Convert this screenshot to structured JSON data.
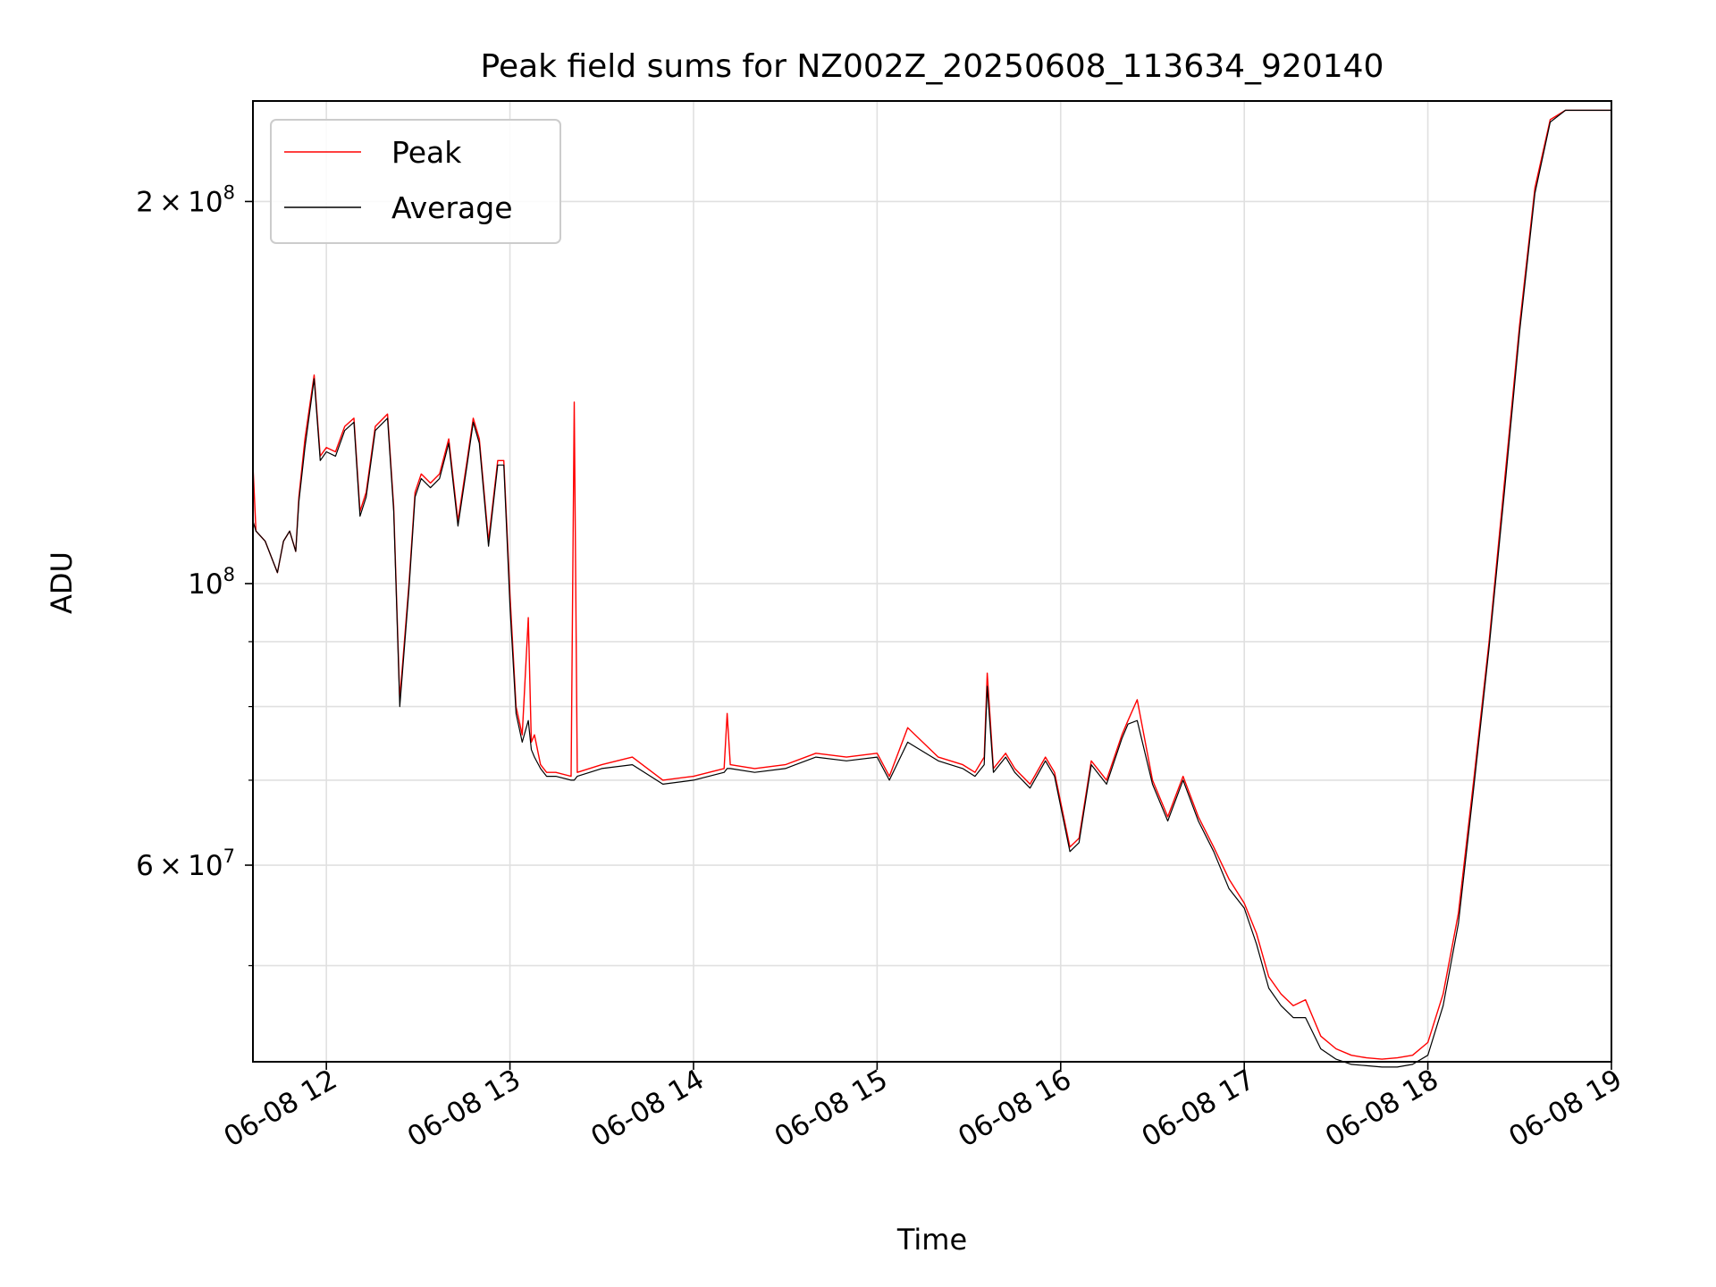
{
  "chart_data": {
    "type": "line",
    "title": "Peak field sums for NZ002Z_20250608_113634_920140",
    "xlabel": "Time",
    "ylabel": "ADU",
    "y_scale": "log",
    "x_range": [
      "2025-06-08 11:36",
      "2025-06-08 19:00"
    ],
    "ylim": [
      42000000,
      240000000
    ],
    "grid": true,
    "legend_placement": "top-left",
    "x_ticks": [
      {
        "value": "2025-06-08 12:00",
        "label": "06-08 12"
      },
      {
        "value": "2025-06-08 13:00",
        "label": "06-08 13"
      },
      {
        "value": "2025-06-08 14:00",
        "label": "06-08 14"
      },
      {
        "value": "2025-06-08 15:00",
        "label": "06-08 15"
      },
      {
        "value": "2025-06-08 16:00",
        "label": "06-08 16"
      },
      {
        "value": "2025-06-08 17:00",
        "label": "06-08 17"
      },
      {
        "value": "2025-06-08 18:00",
        "label": "06-08 18"
      },
      {
        "value": "2025-06-08 19:00",
        "label": "06-08 19"
      }
    ],
    "y_major_ticks": [
      {
        "value": 200000000,
        "base": "2",
        "exp": "8",
        "times": true
      },
      {
        "value": 100000000,
        "base": "10",
        "exp": "8",
        "times": false
      },
      {
        "value": 60000000,
        "base": "6",
        "exp": "7",
        "times": true
      }
    ],
    "y_minor_ticks": [
      50000000,
      70000000,
      80000000,
      90000000
    ],
    "series": [
      {
        "name": "Peak",
        "color": "#ff0000",
        "x": [
          "2025-06-08 11:36",
          "2025-06-08 11:37",
          "2025-06-08 11:40",
          "2025-06-08 11:44",
          "2025-06-08 11:46",
          "2025-06-08 11:48",
          "2025-06-08 11:50",
          "2025-06-08 11:51",
          "2025-06-08 11:53",
          "2025-06-08 11:56",
          "2025-06-08 11:58",
          "2025-06-08 12:00",
          "2025-06-08 12:03",
          "2025-06-08 12:06",
          "2025-06-08 12:09",
          "2025-06-08 12:11",
          "2025-06-08 12:13",
          "2025-06-08 12:16",
          "2025-06-08 12:20",
          "2025-06-08 12:22",
          "2025-06-08 12:24",
          "2025-06-08 12:27",
          "2025-06-08 12:29",
          "2025-06-08 12:31",
          "2025-06-08 12:34",
          "2025-06-08 12:37",
          "2025-06-08 12:40",
          "2025-06-08 12:43",
          "2025-06-08 12:46",
          "2025-06-08 12:48",
          "2025-06-08 12:50",
          "2025-06-08 12:53",
          "2025-06-08 12:56",
          "2025-06-08 12:58",
          "2025-06-08 13:00",
          "2025-06-08 13:02",
          "2025-06-08 13:04",
          "2025-06-08 13:06",
          "2025-06-08 13:07",
          "2025-06-08 13:08",
          "2025-06-08 13:10",
          "2025-06-08 13:12",
          "2025-06-08 13:15",
          "2025-06-08 13:20",
          "2025-06-08 13:21",
          "2025-06-08 13:22",
          "2025-06-08 13:30",
          "2025-06-08 13:40",
          "2025-06-08 13:50",
          "2025-06-08 14:00",
          "2025-06-08 14:10",
          "2025-06-08 14:11",
          "2025-06-08 14:12",
          "2025-06-08 14:20",
          "2025-06-08 14:30",
          "2025-06-08 14:40",
          "2025-06-08 14:50",
          "2025-06-08 15:00",
          "2025-06-08 15:04",
          "2025-06-08 15:10",
          "2025-06-08 15:20",
          "2025-06-08 15:28",
          "2025-06-08 15:32",
          "2025-06-08 15:35",
          "2025-06-08 15:36",
          "2025-06-08 15:38",
          "2025-06-08 15:42",
          "2025-06-08 15:45",
          "2025-06-08 15:50",
          "2025-06-08 15:55",
          "2025-06-08 15:58",
          "2025-06-08 16:03",
          "2025-06-08 16:06",
          "2025-06-08 16:10",
          "2025-06-08 16:15",
          "2025-06-08 16:20",
          "2025-06-08 16:22",
          "2025-06-08 16:25",
          "2025-06-08 16:30",
          "2025-06-08 16:35",
          "2025-06-08 16:40",
          "2025-06-08 16:45",
          "2025-06-08 16:50",
          "2025-06-08 16:55",
          "2025-06-08 17:00",
          "2025-06-08 17:04",
          "2025-06-08 17:08",
          "2025-06-08 17:12",
          "2025-06-08 17:16",
          "2025-06-08 17:20",
          "2025-06-08 17:25",
          "2025-06-08 17:30",
          "2025-06-08 17:35",
          "2025-06-08 17:40",
          "2025-06-08 17:45",
          "2025-06-08 17:50",
          "2025-06-08 17:55",
          "2025-06-08 18:00",
          "2025-06-08 18:05",
          "2025-06-08 18:10",
          "2025-06-08 18:15",
          "2025-06-08 18:20",
          "2025-06-08 18:25",
          "2025-06-08 18:30",
          "2025-06-08 18:35",
          "2025-06-08 18:40",
          "2025-06-08 18:45",
          "2025-06-08 18:50",
          "2025-06-08 18:55",
          "2025-06-08 19:00"
        ],
        "values": [
          124000000,
          110000000,
          108000000,
          102000000,
          108000000,
          110000000,
          106000000,
          117000000,
          130000000,
          146000000,
          126000000,
          128000000,
          127000000,
          133000000,
          135000000,
          114000000,
          118000000,
          133000000,
          136000000,
          115000000,
          81000000,
          100000000,
          118000000,
          122000000,
          120000000,
          122000000,
          130000000,
          112000000,
          125000000,
          135000000,
          130000000,
          108000000,
          125000000,
          125000000,
          98000000,
          80000000,
          76000000,
          94000000,
          75000000,
          76000000,
          72000000,
          71000000,
          71000000,
          70500000,
          139000000,
          71000000,
          72000000,
          73000000,
          70000000,
          70500000,
          71500000,
          79000000,
          72000000,
          71500000,
          72000000,
          73500000,
          73000000,
          73500000,
          70500000,
          77000000,
          73000000,
          72000000,
          71000000,
          73000000,
          85000000,
          71500000,
          73500000,
          71500000,
          69500000,
          73000000,
          71000000,
          62000000,
          63000000,
          72500000,
          70000000,
          76000000,
          78000000,
          81000000,
          70000000,
          65500000,
          70500000,
          65500000,
          62000000,
          58500000,
          56000000,
          53000000,
          49000000,
          47500000,
          46500000,
          47000000,
          44000000,
          43000000,
          42500000,
          42300000,
          42200000,
          42300000,
          42500000,
          43500000,
          47500000,
          55000000,
          70000000,
          90000000,
          120000000,
          160000000,
          205000000,
          232000000,
          236000000,
          236000000,
          236000000,
          236000000
        ]
      },
      {
        "name": "Average",
        "color": "#000000",
        "x": [
          "2025-06-08 11:36",
          "2025-06-08 11:37",
          "2025-06-08 11:40",
          "2025-06-08 11:44",
          "2025-06-08 11:46",
          "2025-06-08 11:48",
          "2025-06-08 11:50",
          "2025-06-08 11:51",
          "2025-06-08 11:53",
          "2025-06-08 11:56",
          "2025-06-08 11:58",
          "2025-06-08 12:00",
          "2025-06-08 12:03",
          "2025-06-08 12:06",
          "2025-06-08 12:09",
          "2025-06-08 12:11",
          "2025-06-08 12:13",
          "2025-06-08 12:16",
          "2025-06-08 12:20",
          "2025-06-08 12:22",
          "2025-06-08 12:24",
          "2025-06-08 12:27",
          "2025-06-08 12:29",
          "2025-06-08 12:31",
          "2025-06-08 12:34",
          "2025-06-08 12:37",
          "2025-06-08 12:40",
          "2025-06-08 12:43",
          "2025-06-08 12:46",
          "2025-06-08 12:48",
          "2025-06-08 12:50",
          "2025-06-08 12:53",
          "2025-06-08 12:56",
          "2025-06-08 12:58",
          "2025-06-08 13:00",
          "2025-06-08 13:02",
          "2025-06-08 13:04",
          "2025-06-08 13:06",
          "2025-06-08 13:07",
          "2025-06-08 13:08",
          "2025-06-08 13:10",
          "2025-06-08 13:12",
          "2025-06-08 13:15",
          "2025-06-08 13:20",
          "2025-06-08 13:21",
          "2025-06-08 13:22",
          "2025-06-08 13:30",
          "2025-06-08 13:40",
          "2025-06-08 13:50",
          "2025-06-08 14:00",
          "2025-06-08 14:10",
          "2025-06-08 14:11",
          "2025-06-08 14:12",
          "2025-06-08 14:20",
          "2025-06-08 14:30",
          "2025-06-08 14:40",
          "2025-06-08 14:50",
          "2025-06-08 15:00",
          "2025-06-08 15:04",
          "2025-06-08 15:10",
          "2025-06-08 15:20",
          "2025-06-08 15:28",
          "2025-06-08 15:32",
          "2025-06-08 15:35",
          "2025-06-08 15:36",
          "2025-06-08 15:38",
          "2025-06-08 15:42",
          "2025-06-08 15:45",
          "2025-06-08 15:50",
          "2025-06-08 15:55",
          "2025-06-08 15:58",
          "2025-06-08 16:03",
          "2025-06-08 16:06",
          "2025-06-08 16:10",
          "2025-06-08 16:15",
          "2025-06-08 16:20",
          "2025-06-08 16:22",
          "2025-06-08 16:25",
          "2025-06-08 16:30",
          "2025-06-08 16:35",
          "2025-06-08 16:40",
          "2025-06-08 16:45",
          "2025-06-08 16:50",
          "2025-06-08 16:55",
          "2025-06-08 17:00",
          "2025-06-08 17:04",
          "2025-06-08 17:08",
          "2025-06-08 17:12",
          "2025-06-08 17:16",
          "2025-06-08 17:20",
          "2025-06-08 17:25",
          "2025-06-08 17:30",
          "2025-06-08 17:35",
          "2025-06-08 17:40",
          "2025-06-08 17:45",
          "2025-06-08 17:50",
          "2025-06-08 17:55",
          "2025-06-08 18:00",
          "2025-06-08 18:05",
          "2025-06-08 18:10",
          "2025-06-08 18:15",
          "2025-06-08 18:20",
          "2025-06-08 18:25",
          "2025-06-08 18:30",
          "2025-06-08 18:35",
          "2025-06-08 18:40",
          "2025-06-08 18:45",
          "2025-06-08 18:50",
          "2025-06-08 18:55",
          "2025-06-08 19:00"
        ],
        "values": [
          112000000,
          110000000,
          108000000,
          102000000,
          108000000,
          110000000,
          106000000,
          116000000,
          128000000,
          145000000,
          125000000,
          127000000,
          126000000,
          132000000,
          134000000,
          113000000,
          117000000,
          132000000,
          135000000,
          114000000,
          80000000,
          99000000,
          117000000,
          121000000,
          119000000,
          121000000,
          129000000,
          111000000,
          124000000,
          134000000,
          129000000,
          107000000,
          124000000,
          124000000,
          96000000,
          79000000,
          75000000,
          78000000,
          74000000,
          73000000,
          71500000,
          70500000,
          70500000,
          70000000,
          70000000,
          70500000,
          71500000,
          72000000,
          69500000,
          70000000,
          71000000,
          71500000,
          71500000,
          71000000,
          71500000,
          73000000,
          72500000,
          73000000,
          70000000,
          75000000,
          72500000,
          71500000,
          70500000,
          72000000,
          83000000,
          71000000,
          73000000,
          71000000,
          69000000,
          72500000,
          70500000,
          61500000,
          62500000,
          72000000,
          69500000,
          75500000,
          77500000,
          78000000,
          69500000,
          65000000,
          70000000,
          65000000,
          61500000,
          57500000,
          55500000,
          52000000,
          48000000,
          46500000,
          45500000,
          45500000,
          43000000,
          42200000,
          41800000,
          41700000,
          41600000,
          41600000,
          41800000,
          42500000,
          46500000,
          54000000,
          69000000,
          89000000,
          118000000,
          158000000,
          203000000,
          231000000,
          236000000,
          236000000,
          236000000,
          236000000
        ]
      }
    ]
  }
}
